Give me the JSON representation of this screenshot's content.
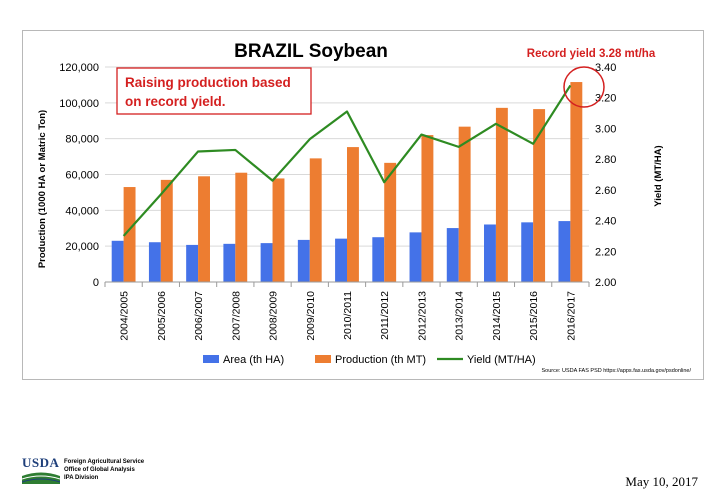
{
  "chart_data": {
    "type": "bar",
    "title": "BRAZIL Soybean",
    "categories": [
      "2004/2005",
      "2005/2006",
      "2006/2007",
      "2007/2008",
      "2008/2009",
      "2009/2010",
      "2010/2011",
      "2011/2012",
      "2012/2013",
      "2013/2014",
      "2014/2015",
      "2015/2016",
      "2016/2017"
    ],
    "series": [
      {
        "name": "Area (th HA)",
        "kind": "bar",
        "axis": "left",
        "color": "#4472e8",
        "values": [
          23000,
          22200,
          20700,
          21300,
          21700,
          23500,
          24200,
          25000,
          27700,
          30100,
          32100,
          33300,
          34000
        ]
      },
      {
        "name": "Production (th MT)",
        "kind": "bar",
        "axis": "left",
        "color": "#ed7d31",
        "values": [
          53000,
          57000,
          59000,
          61000,
          57800,
          69000,
          75300,
          66500,
          82000,
          86700,
          97200,
          96500,
          111600
        ]
      },
      {
        "name": "Yield (MT/HA)",
        "kind": "line",
        "axis": "right",
        "color": "#2e8b22",
        "values": [
          2.3,
          2.57,
          2.85,
          2.86,
          2.66,
          2.93,
          3.11,
          2.65,
          2.96,
          2.88,
          3.03,
          2.9,
          3.28
        ]
      }
    ],
    "ylabel": "Production (1000 HA or Matric Ton)",
    "ylabel_right": "Yield (MT/HA)",
    "ylim": [
      0,
      120000
    ],
    "yticks": [
      0,
      20000,
      40000,
      60000,
      80000,
      100000,
      120000
    ],
    "ytick_labels": [
      "0",
      "20,000",
      "40,000",
      "60,000",
      "80,000",
      "100,000",
      "120,000"
    ],
    "ylim_right": [
      2.0,
      3.4
    ],
    "yticks_right": [
      2.0,
      2.2,
      2.4,
      2.6,
      2.8,
      3.0,
      3.2,
      3.4
    ],
    "ytick_labels_right": [
      "2.00",
      "2.20",
      "2.40",
      "2.60",
      "2.80",
      "3.00",
      "3.20",
      "3.40"
    ],
    "grid": true,
    "legend": "bottom",
    "annotations": {
      "box_text_line1": "Raising production based",
      "box_text_line2": "on record yield.",
      "record_text": "Record yield 3.28 mt/ha",
      "source": "Source: USDA FAS PSD https://apps.fas.usda.gov/psdonline/"
    },
    "colors": {
      "annotation_red": "#d42020",
      "grid": "#d9d9d9"
    }
  },
  "footer": {
    "logo_text": "USDA",
    "org_line1": "Foreign Agricultural Service",
    "org_line2": "Office of Global Analysis",
    "org_line3": "IPA Division",
    "date": "May 10, 2017"
  }
}
